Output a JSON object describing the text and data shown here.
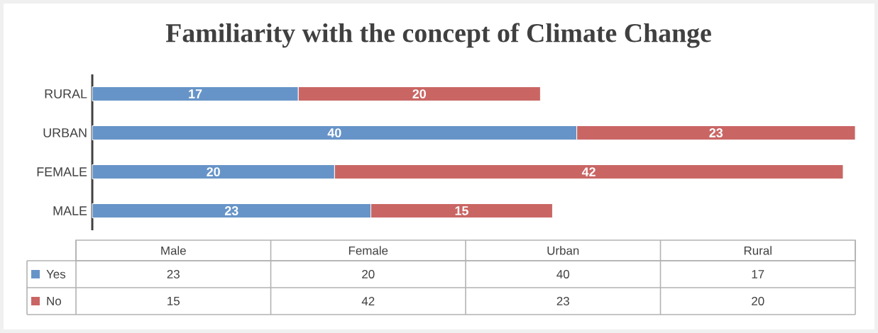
{
  "chart_data": {
    "type": "bar",
    "orientation": "horizontal",
    "stacked": true,
    "title": "Familiarity with the concept of Climate Change",
    "categories": [
      "RURAL",
      "URBAN",
      "FEMALE",
      "MALE"
    ],
    "series": [
      {
        "name": "Yes",
        "color": "#6794c8",
        "values": [
          17,
          40,
          20,
          23
        ]
      },
      {
        "name": "No",
        "color": "#c96664",
        "values": [
          20,
          23,
          42,
          15
        ]
      }
    ],
    "data_labels": true,
    "legend": "bottom",
    "annotations": [
      "Male",
      "Female",
      "Urban",
      "Rural",
      "23",
      "20",
      "40",
      "17",
      "15",
      "42",
      "23",
      "20"
    ]
  }
}
